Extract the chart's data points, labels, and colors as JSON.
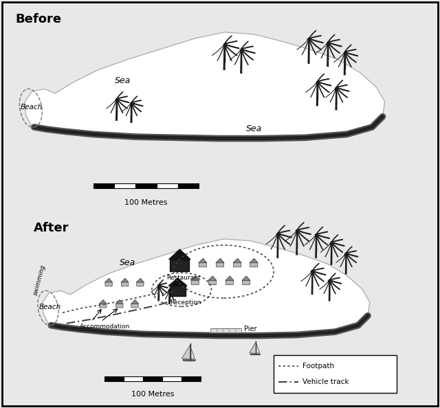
{
  "title_before": "Before",
  "title_after": "After",
  "bg_color": "#e8e8e8",
  "panel_bg": "#ffffff",
  "scale_bar_label": "100 Metres",
  "legend_footpath": "Footpath",
  "legend_vehicle": "Vehicle track",
  "before_sea_north": "Sea",
  "before_sea_south": "Sea",
  "before_beach": "Beach",
  "after_sea": "Sea",
  "after_beach": "Beach",
  "after_swimming": "swimming",
  "after_restaurant": "Restaurant",
  "after_reception": "Reception",
  "after_pier": "Pier",
  "after_accommodation": "Accommodation"
}
